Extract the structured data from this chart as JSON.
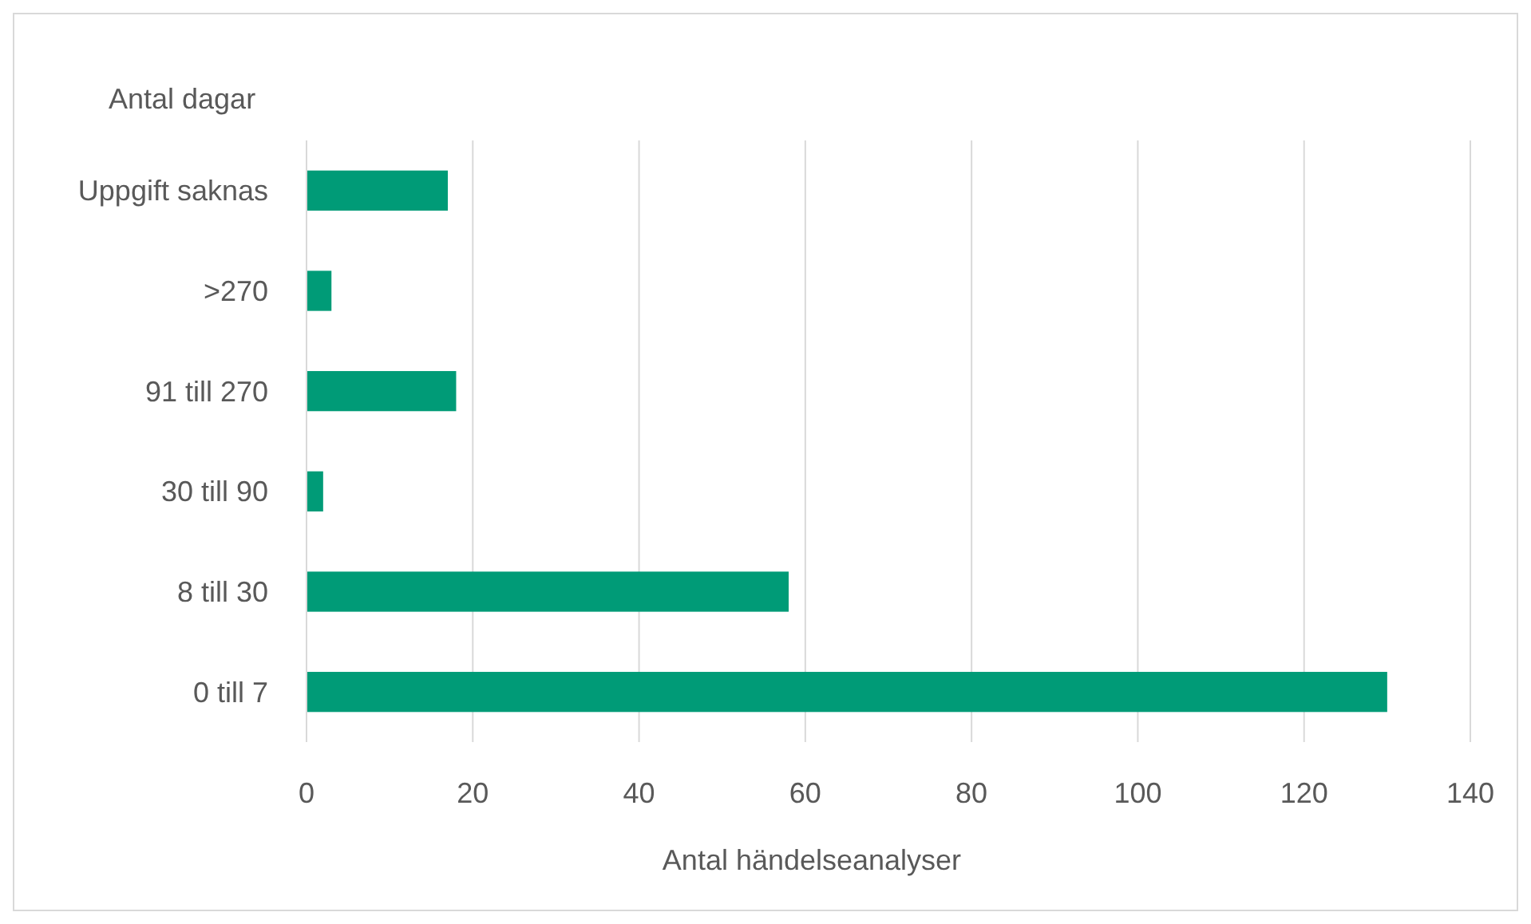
{
  "chart_data": {
    "type": "bar",
    "orientation": "horizontal",
    "ylabel": "Antal dagar",
    "xlabel": "Antal händelseanalyser",
    "categories": [
      "Uppgift saknas",
      ">270",
      "91 till 270",
      "30 till 90",
      "8 till 30",
      "0 till 7"
    ],
    "values": [
      17,
      3,
      18,
      2,
      58,
      130
    ],
    "color": "#009b77",
    "xlim": [
      0,
      140
    ],
    "xticks": [
      0,
      20,
      40,
      60,
      80,
      100,
      120,
      140
    ],
    "grid": "x"
  }
}
